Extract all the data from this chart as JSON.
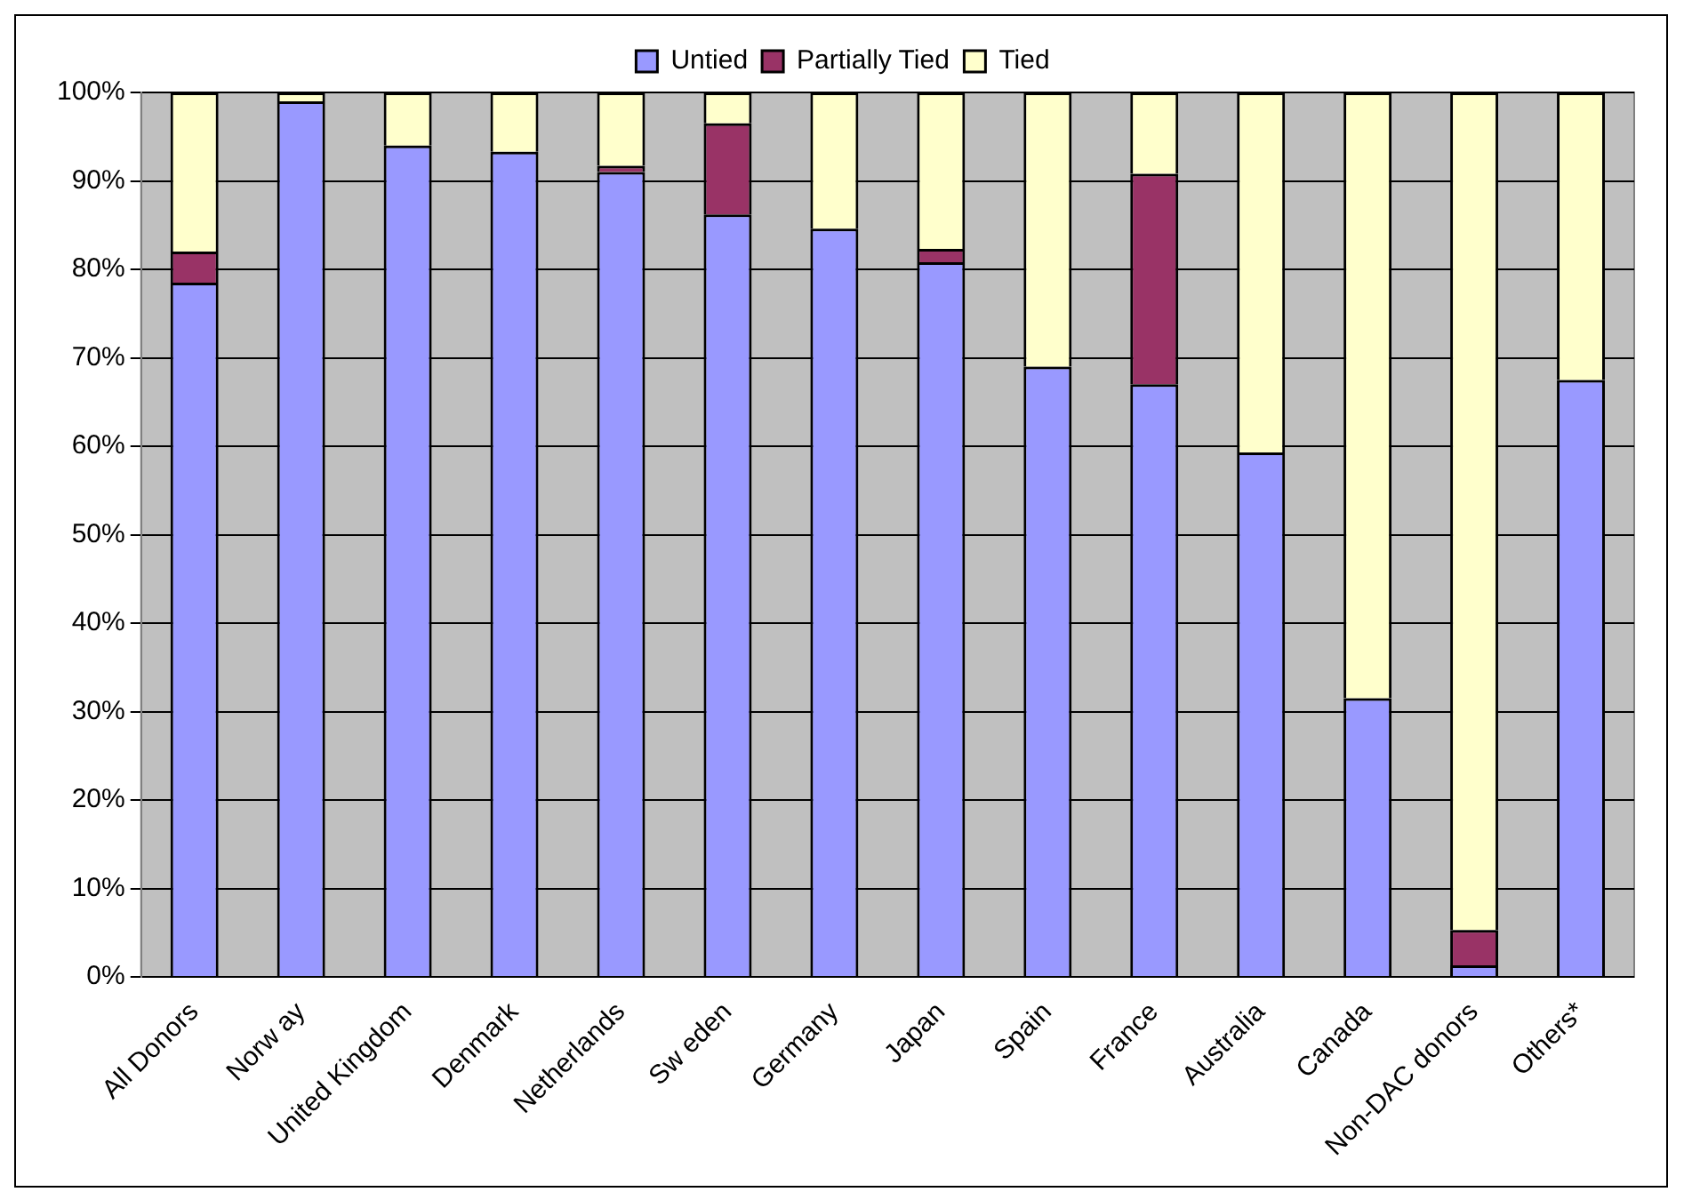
{
  "chart_data": {
    "type": "bar",
    "stacked": true,
    "categories": [
      "All Donors",
      "Norw ay",
      "United Kingdom",
      "Denmark",
      "Netherlands",
      "Sw eden",
      "Germany",
      "Japan",
      "Spain",
      "France",
      "Australia",
      "Canada",
      "Non-DAC donors",
      "Others*"
    ],
    "series": [
      {
        "name": "Untied",
        "color": "#9999ff",
        "values": [
          78.5,
          99,
          94,
          93.3,
          91,
          86.2,
          84.6,
          80.8,
          69,
          67,
          59.3,
          31.5,
          1.3,
          67.5
        ]
      },
      {
        "name": "Partially Tied",
        "color": "#993366",
        "values": [
          3.5,
          0,
          0,
          0,
          0.7,
          10.3,
          0,
          1.5,
          0,
          23.8,
          0,
          0,
          4,
          0
        ]
      },
      {
        "name": "Tied",
        "color": "#ffffcc",
        "values": [
          18,
          1,
          6,
          6.7,
          8.3,
          3.5,
          15.4,
          17.7,
          31,
          9.2,
          40.7,
          68.5,
          94.7,
          32.5
        ]
      }
    ],
    "ylim": [
      0,
      100
    ],
    "yticks": [
      {
        "value": 0,
        "label": "0%"
      },
      {
        "value": 10,
        "label": "10%"
      },
      {
        "value": 20,
        "label": "20%"
      },
      {
        "value": 30,
        "label": "30%"
      },
      {
        "value": 40,
        "label": "40%"
      },
      {
        "value": 50,
        "label": "50%"
      },
      {
        "value": 60,
        "label": "60%"
      },
      {
        "value": 70,
        "label": "70%"
      },
      {
        "value": 80,
        "label": "80%"
      },
      {
        "value": 90,
        "label": "90%"
      },
      {
        "value": 100,
        "label": "100%"
      }
    ],
    "grid": "y",
    "legend": "top"
  }
}
